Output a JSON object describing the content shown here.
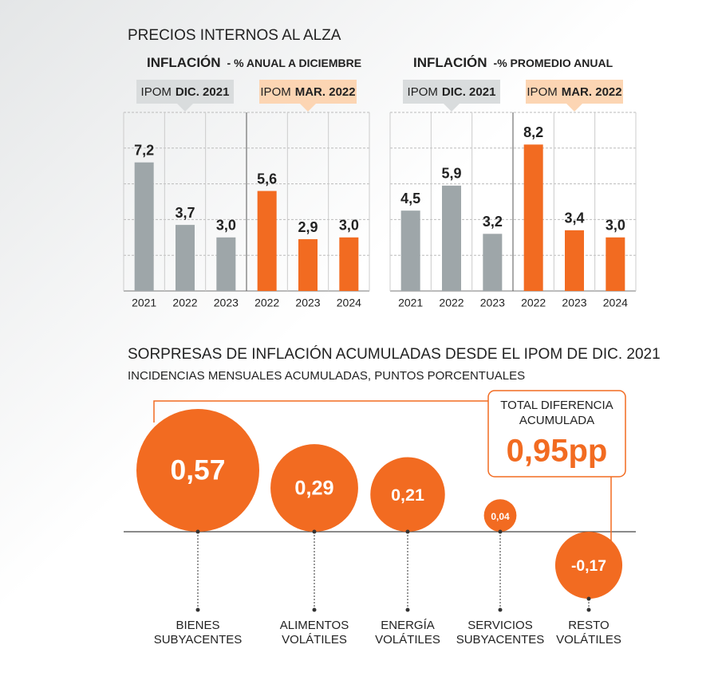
{
  "title": "PRECIOS INTERNOS AL ALZA",
  "chart_data": [
    {
      "type": "bar",
      "title": "INFLACIÓN",
      "subtitle": "- % ANUAL A DICIEMBRE",
      "ylim": [
        0,
        10
      ],
      "yticks": [
        0,
        2,
        4,
        6,
        8,
        10
      ],
      "grid": true,
      "series": [
        {
          "name_parts": [
            "IPOM",
            "DIC. 2021"
          ],
          "color": "#9ea6a9",
          "box_color": "#d9dcdd",
          "categories": [
            "2021",
            "2022",
            "2023"
          ],
          "values": [
            7.2,
            3.7,
            3.0
          ],
          "value_labels": [
            "7,2",
            "3,7",
            "3,0"
          ]
        },
        {
          "name_parts": [
            "IPOM",
            "MAR. 2022"
          ],
          "color": "#f26b21",
          "box_color": "#fcd5b3",
          "categories": [
            "2022",
            "2023",
            "2024"
          ],
          "values": [
            5.6,
            2.9,
            3.0
          ],
          "value_labels": [
            "5,6",
            "2,9",
            "3,0"
          ]
        }
      ]
    },
    {
      "type": "bar",
      "title": "INFLACIÓN",
      "subtitle": "-% PROMEDIO ANUAL",
      "ylim": [
        0,
        10
      ],
      "yticks": [
        0,
        2,
        4,
        6,
        8,
        10
      ],
      "grid": true,
      "series": [
        {
          "name_parts": [
            "IPOM",
            "DIC. 2021"
          ],
          "color": "#9ea6a9",
          "box_color": "#d9dcdd",
          "categories": [
            "2021",
            "2022",
            "2023"
          ],
          "values": [
            4.5,
            5.9,
            3.2
          ],
          "value_labels": [
            "4,5",
            "5,9",
            "3,2"
          ]
        },
        {
          "name_parts": [
            "IPOM",
            "MAR. 2022"
          ],
          "color": "#f26b21",
          "box_color": "#fcd5b3",
          "categories": [
            "2022",
            "2023",
            "2024"
          ],
          "values": [
            8.2,
            3.4,
            3.0
          ],
          "value_labels": [
            "8,2",
            "3,4",
            "3,0"
          ]
        }
      ]
    },
    {
      "type": "bubble",
      "title": "SORPRESAS DE INFLACIÓN ACUMULADAS DESDE EL IPOM DE DIC. 2021",
      "subtitle": "INCIDENCIAS MENSUALES ACUMULADAS, PUNTOS PORCENTUALES",
      "color": "#f26b21",
      "categories": [
        [
          "BIENES",
          "SUBYACENTES"
        ],
        [
          "ALIMENTOS",
          "VOLÁTILES"
        ],
        [
          "ENERGÍA",
          "VOLÁTILES"
        ],
        [
          "SERVICIOS",
          "SUBYACENTES"
        ],
        [
          "RESTO",
          "VOLÁTILES"
        ]
      ],
      "values": [
        0.57,
        0.29,
        0.21,
        0.04,
        -0.17
      ],
      "value_labels": [
        "0,57",
        "0,29",
        "0,21",
        "0,04",
        "-0,17"
      ],
      "total": {
        "label": [
          "TOTAL DIFERENCIA",
          "ACUMULADA"
        ],
        "value": 0.95,
        "value_label": "0,95pp"
      }
    }
  ]
}
